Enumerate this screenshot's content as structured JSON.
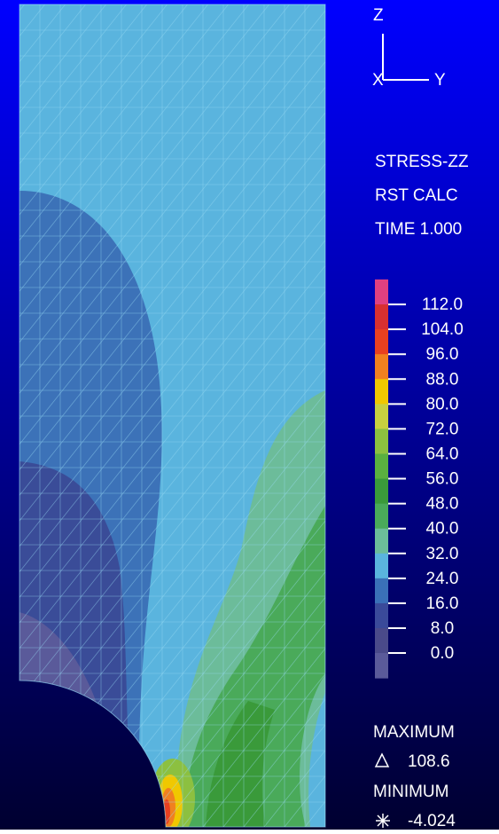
{
  "triad": {
    "z": "Z",
    "x": "X",
    "y": "Y"
  },
  "legend": {
    "title": [
      "STRESS-ZZ",
      "RST CALC",
      "TIME 1.000"
    ],
    "labels": [
      "112.0",
      "104.0",
      "96.0",
      "88.0",
      "80.0",
      "72.0",
      "64.0",
      "56.0",
      "48.0",
      "40.0",
      "32.0",
      "24.0",
      "16.0",
      "8.0",
      "0.0"
    ]
  },
  "maximum": {
    "label": "MAXIMUM",
    "value": "108.6"
  },
  "minimum": {
    "label": "MINIMUM",
    "value": "-4.024"
  }
}
